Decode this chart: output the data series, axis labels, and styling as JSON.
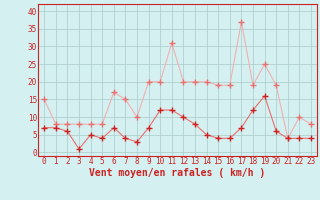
{
  "hours": [
    0,
    1,
    2,
    3,
    4,
    5,
    6,
    7,
    8,
    9,
    10,
    11,
    12,
    13,
    14,
    15,
    16,
    17,
    18,
    19,
    20,
    21,
    22,
    23
  ],
  "wind_avg": [
    7,
    7,
    6,
    1,
    5,
    4,
    7,
    4,
    3,
    7,
    12,
    12,
    10,
    8,
    5,
    4,
    4,
    7,
    12,
    16,
    6,
    4,
    4,
    4
  ],
  "wind_gust": [
    15,
    8,
    8,
    8,
    8,
    8,
    17,
    15,
    10,
    20,
    20,
    31,
    20,
    20,
    20,
    19,
    19,
    37,
    19,
    25,
    19,
    4,
    10,
    8
  ],
  "line_color_avg": "#e87070",
  "line_color_gust": "#f0b0b0",
  "marker_color_avg": "#cc2222",
  "marker_color_gust": "#e87070",
  "bg_color": "#d4f0f0",
  "grid_color": "#aacccc",
  "axis_color": "#cc2222",
  "xlabel": "Vent moyen/en rafales ( km/h )",
  "ylim": [
    -1,
    42
  ],
  "yticks": [
    0,
    5,
    10,
    15,
    20,
    25,
    30,
    35,
    40
  ],
  "xlabel_fontsize": 7,
  "tick_fontsize": 5.5
}
